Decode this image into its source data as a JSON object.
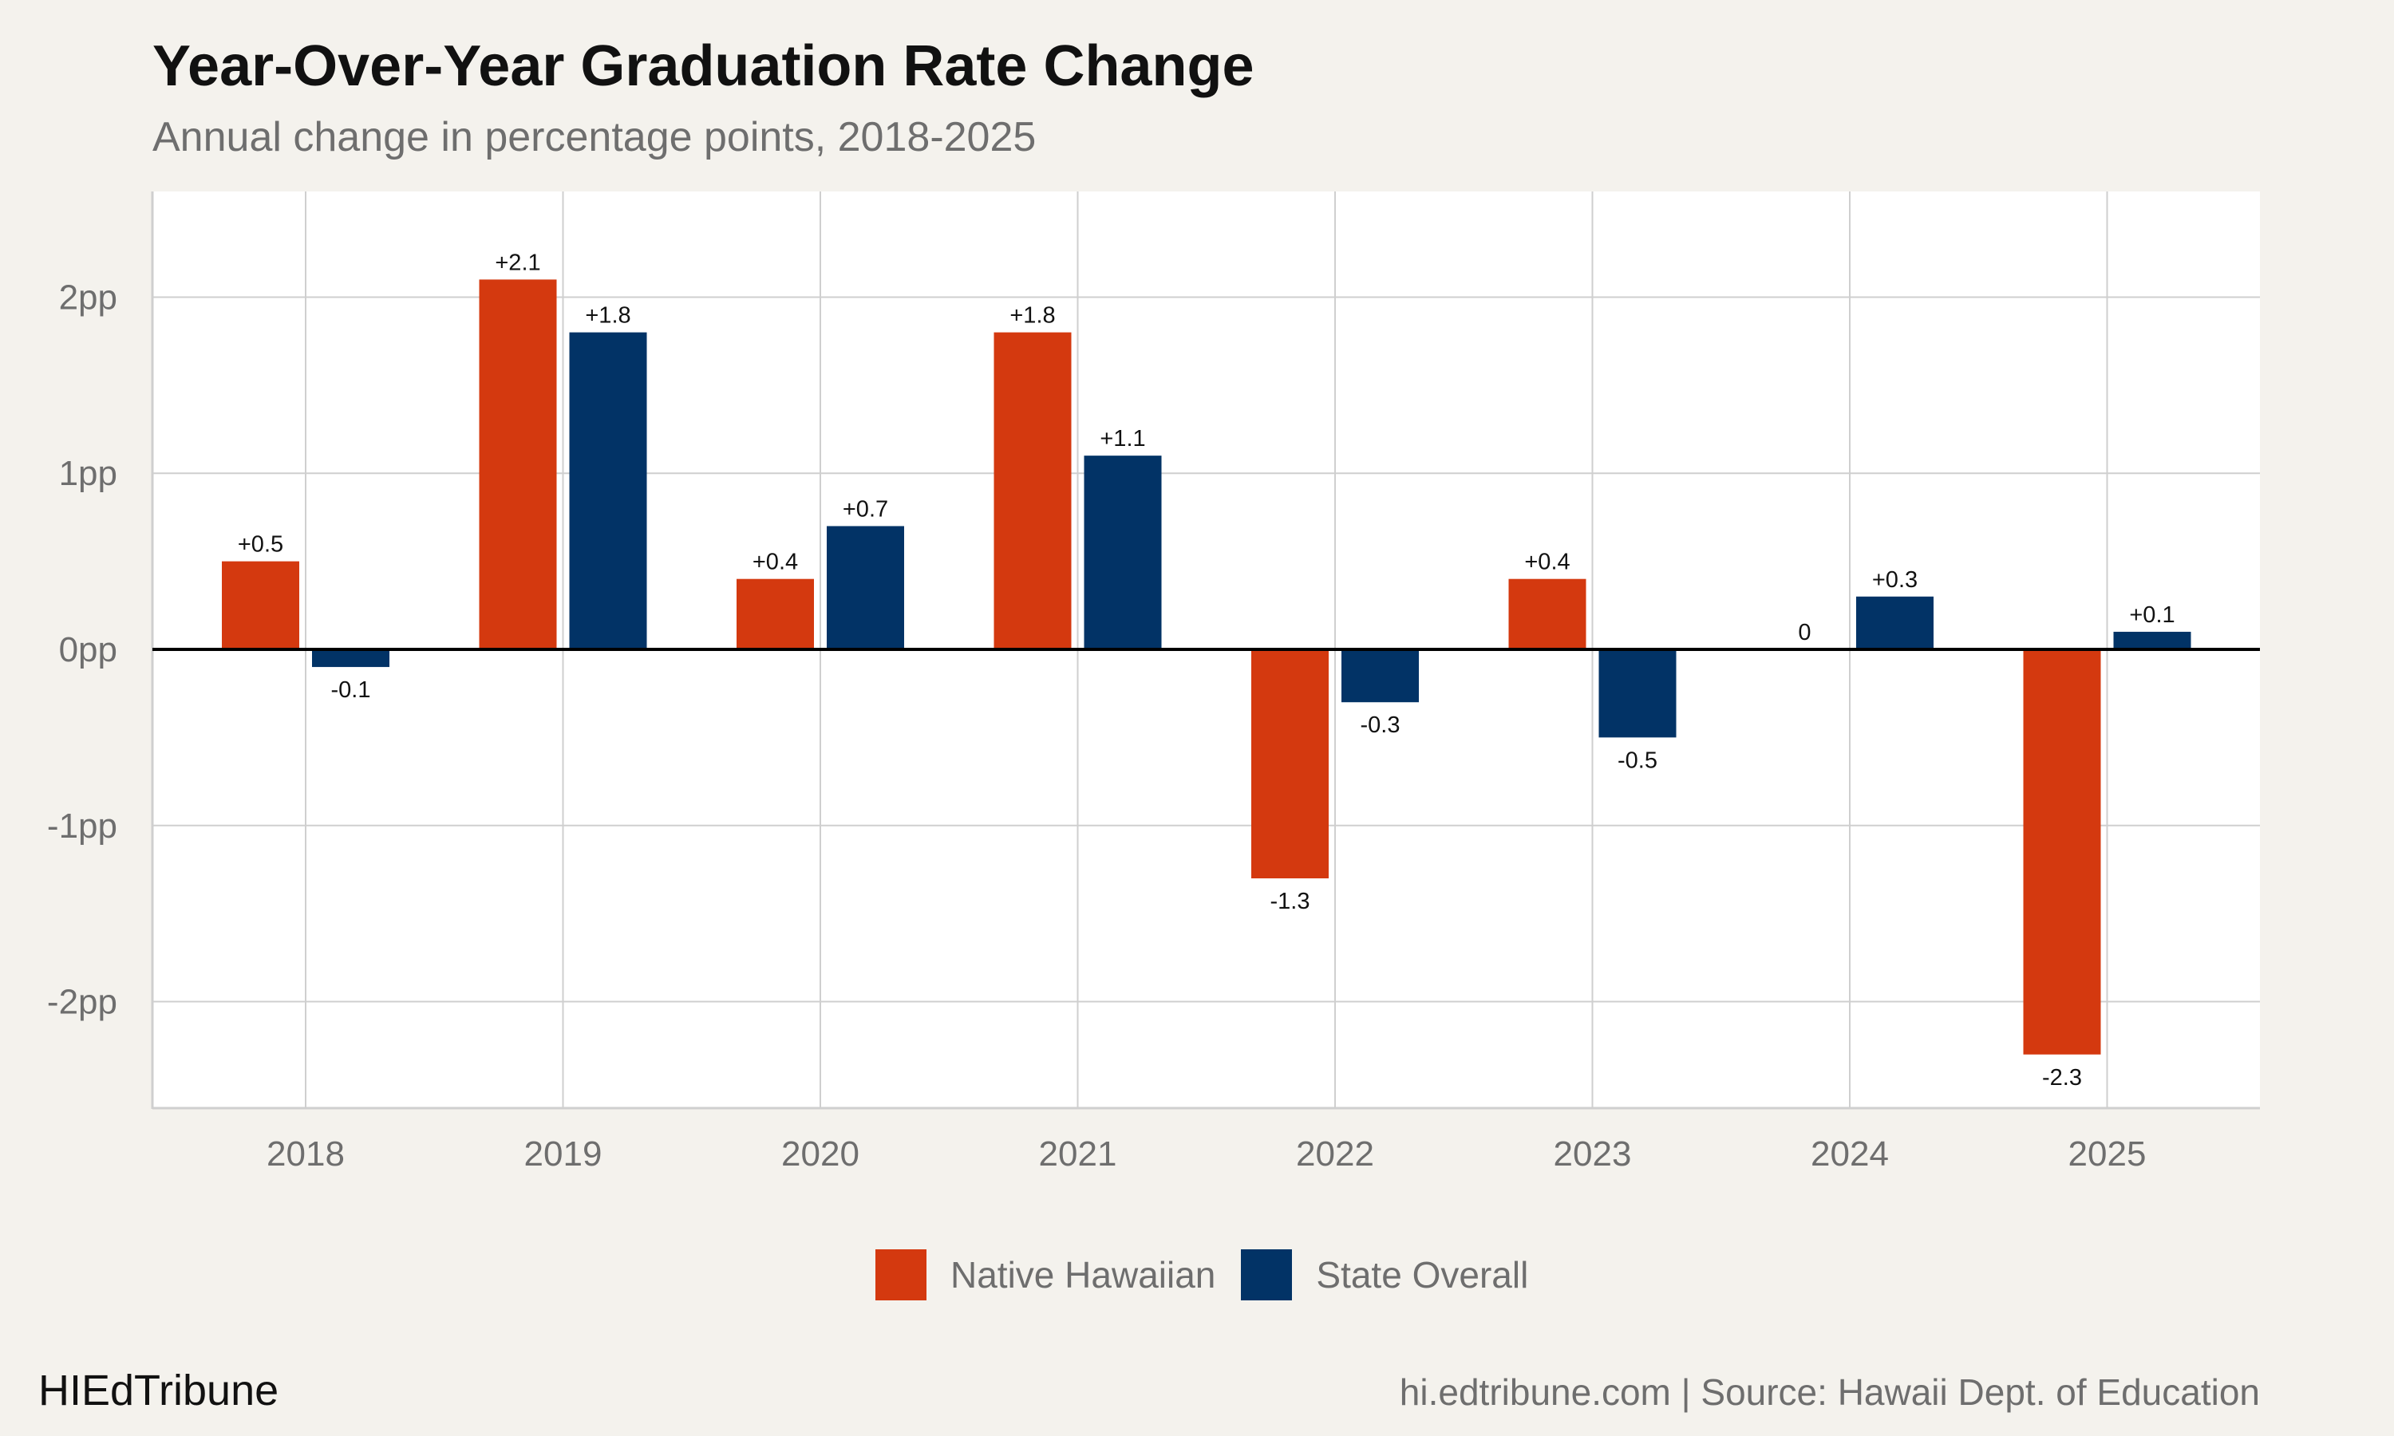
{
  "header": {
    "title": "Year-Over-Year Graduation Rate Change",
    "subtitle": "Annual change in percentage points, 2018-2025"
  },
  "footer": {
    "brand": "HIEdTribune",
    "source": "hi.edtribune.com | Source: Hawaii Dept. of Education"
  },
  "colors": {
    "native_hawaiian": "#d4390f",
    "state_overall": "#023366",
    "panel": "#ffffff",
    "background": "#f4f2ed",
    "grid": "#cfcfcf",
    "zero_line": "#000000"
  },
  "chart_data": {
    "type": "bar",
    "title": "Year-Over-Year Graduation Rate Change",
    "subtitle": "Annual change in percentage points, 2018-2025",
    "xlabel": "",
    "ylabel": "",
    "categories": [
      "2018",
      "2019",
      "2020",
      "2021",
      "2022",
      "2023",
      "2024",
      "2025"
    ],
    "series": [
      {
        "name": "Native Hawaiian",
        "values": [
          0.5,
          2.1,
          0.4,
          1.8,
          -1.3,
          0.4,
          0,
          -2.3
        ],
        "labels": [
          "+0.5",
          "+2.1",
          "+0.4",
          "+1.8",
          "-1.3",
          "+0.4",
          "0",
          "-2.3"
        ]
      },
      {
        "name": "State Overall",
        "values": [
          -0.1,
          1.8,
          0.7,
          1.1,
          -0.3,
          -0.5,
          0.3,
          0.1
        ],
        "labels": [
          "-0.1",
          "+1.8",
          "+0.7",
          "+1.1",
          "-0.3",
          "-0.5",
          "+0.3",
          "+0.1"
        ]
      }
    ],
    "ylim": [
      -2.6,
      2.6
    ],
    "yticks": [
      -2,
      -1,
      0,
      1,
      2
    ],
    "ytick_labels": [
      "-2pp",
      "-1pp",
      "0pp",
      "1pp",
      "2pp"
    ],
    "grid": true,
    "legend_position": "bottom"
  }
}
